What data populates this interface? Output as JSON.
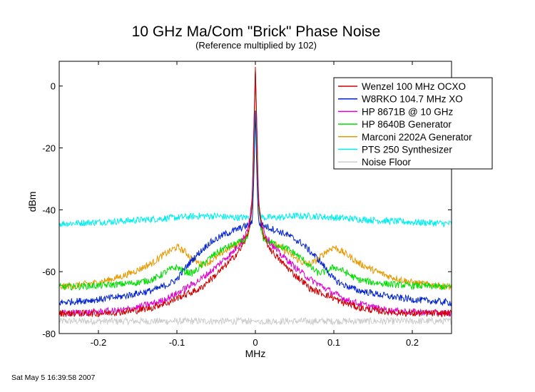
{
  "chart_data": {
    "type": "line",
    "title": "10 GHz Ma/Com \"Brick\" Phase Noise",
    "subtitle": "(Reference multiplied by 102)",
    "xlabel": "MHz",
    "ylabel": "dBm",
    "xlim": [
      -0.25,
      0.25
    ],
    "ylim": [
      -80,
      8
    ],
    "x_ticks": [
      -0.2,
      -0.1,
      0,
      0.1,
      0.2
    ],
    "x_tick_labels": [
      "-0.2",
      "-0.1",
      "0",
      "0.1",
      "0.2"
    ],
    "y_ticks": [
      0,
      -20,
      -40,
      -60,
      -80
    ],
    "y_tick_labels": [
      "0",
      "-20",
      "-40",
      "-60",
      "-80"
    ],
    "grid": false,
    "legend_position": "top-right",
    "footer": "Sat May  5 16:39:58 2007",
    "series": [
      {
        "name": "Wenzel 100 MHz OCXO",
        "color": "#cc0000",
        "x": [
          0,
          0.002,
          0.004,
          0.007,
          0.01,
          0.015,
          0.02,
          0.03,
          0.04,
          0.05,
          0.06,
          0.07,
          0.08,
          0.09,
          0.1,
          0.11,
          0.12,
          0.13,
          0.15,
          0.17,
          0.2,
          0.25
        ],
        "y": [
          6,
          -15,
          -38,
          -44,
          -48,
          -51,
          -53,
          -56,
          -58.5,
          -61,
          -63,
          -65.5,
          -66.5,
          -67.5,
          -68.5,
          -70,
          -70.5,
          -71.5,
          -72.5,
          -73,
          -73.5,
          -73.5
        ]
      },
      {
        "name": "W8RKO 104.7 MHz XO",
        "color": "#0022cc",
        "x": [
          0,
          0.002,
          0.004,
          0.007,
          0.01,
          0.015,
          0.02,
          0.03,
          0.04,
          0.05,
          0.06,
          0.07,
          0.08,
          0.09,
          0.1,
          0.11,
          0.12,
          0.13,
          0.15,
          0.17,
          0.2,
          0.25
        ],
        "y": [
          -8,
          -30,
          -44,
          -45,
          -45,
          -45.5,
          -46,
          -47,
          -48,
          -49.5,
          -51,
          -53.5,
          -56,
          -59,
          -62.5,
          -64,
          -65,
          -66,
          -67,
          -68,
          -69,
          -70
        ]
      },
      {
        "name": "HP 8671B @ 10 GHz",
        "color": "#dd00cc",
        "x": [
          0,
          0.002,
          0.004,
          0.007,
          0.01,
          0.015,
          0.02,
          0.03,
          0.04,
          0.05,
          0.06,
          0.07,
          0.08,
          0.09,
          0.1,
          0.12,
          0.15,
          0.17,
          0.2,
          0.25
        ],
        "y": [
          5,
          -15,
          -36,
          -43,
          -46,
          -49,
          -51,
          -54,
          -56,
          -58.5,
          -60.5,
          -62.5,
          -64,
          -65.5,
          -67,
          -69.5,
          -71.5,
          -72.5,
          -73,
          -73.5
        ]
      },
      {
        "name": "HP 8640B Generator",
        "color": "#00dd00",
        "x": [
          0,
          0.002,
          0.004,
          0.007,
          0.01,
          0.015,
          0.02,
          0.03,
          0.04,
          0.05,
          0.06,
          0.07,
          0.08,
          0.09,
          0.1,
          0.11,
          0.12,
          0.13,
          0.15,
          0.17,
          0.2,
          0.25
        ],
        "y": [
          5,
          -20,
          -38,
          -46,
          -49,
          -50,
          -50.5,
          -51.5,
          -52.5,
          -54,
          -56,
          -58.5,
          -60.5,
          -60,
          -58.5,
          -59.5,
          -61,
          -62.5,
          -63.5,
          -64,
          -64.5,
          -65
        ]
      },
      {
        "name": "Marconi 2202A Generator",
        "color": "#e69900",
        "x": [
          0,
          0.002,
          0.004,
          0.007,
          0.01,
          0.015,
          0.02,
          0.03,
          0.04,
          0.05,
          0.06,
          0.07,
          0.08,
          0.09,
          0.1,
          0.11,
          0.12,
          0.13,
          0.15,
          0.17,
          0.2,
          0.25
        ],
        "y": [
          5,
          -18,
          -38,
          -46,
          -48,
          -49.5,
          -50.5,
          -52,
          -53.5,
          -55.5,
          -57,
          -57.5,
          -56,
          -53.5,
          -52,
          -53.5,
          -55,
          -57,
          -59.5,
          -61.5,
          -63.5,
          -65
        ]
      },
      {
        "name": "PTS 250 Synthesizer",
        "color": "#00eeee",
        "x": [
          0,
          0.002,
          0.004,
          0.007,
          0.01,
          0.02,
          0.03,
          0.05,
          0.07,
          0.1,
          0.13,
          0.16,
          0.2,
          0.25
        ],
        "y": [
          5,
          -20,
          -38,
          -42,
          -42.5,
          -42.5,
          -42.5,
          -42,
          -42,
          -42.5,
          -43,
          -43.5,
          -44,
          -44.5
        ]
      },
      {
        "name": "Noise Floor",
        "color": "#cccccc",
        "x": [
          0,
          0.05,
          0.1,
          0.15,
          0.2,
          0.25
        ],
        "y": [
          -76,
          -76,
          -76,
          -76,
          -76,
          -76
        ]
      }
    ]
  }
}
